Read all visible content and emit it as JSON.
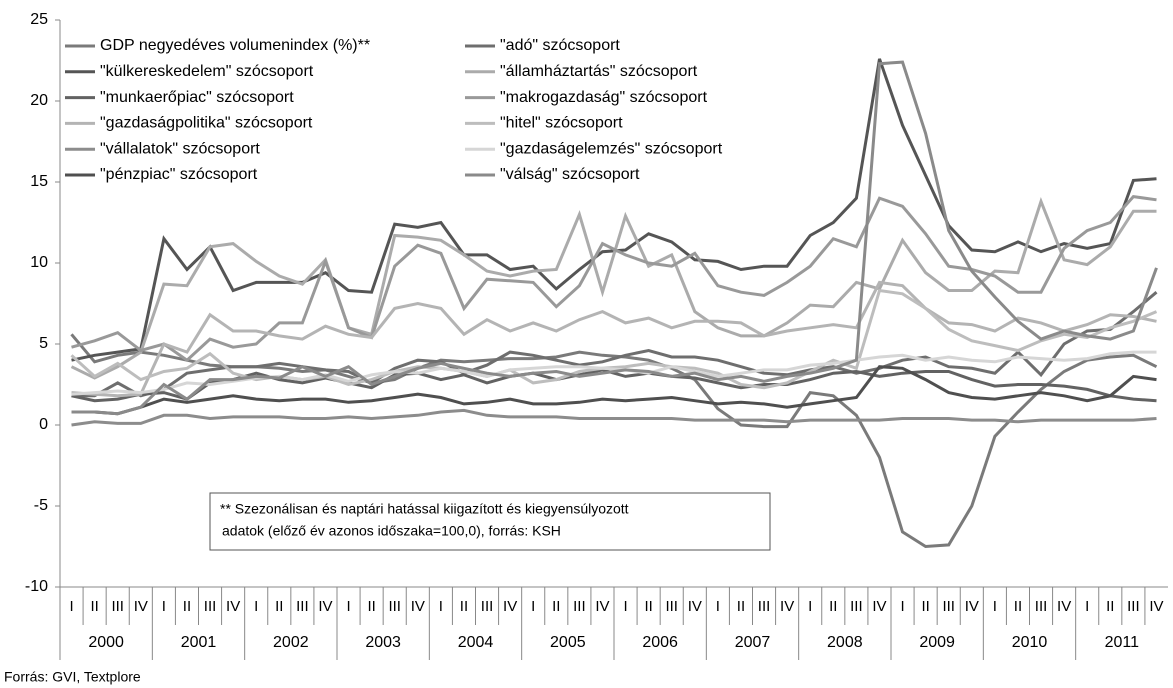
{
  "chart_data": {
    "type": "line",
    "categories": [
      "I",
      "II",
      "III",
      "IV",
      "I",
      "II",
      "III",
      "IV",
      "I",
      "II",
      "III",
      "IV",
      "I",
      "II",
      "III",
      "IV",
      "I",
      "II",
      "III",
      "IV",
      "I",
      "II",
      "III",
      "IV",
      "I",
      "II",
      "III",
      "IV",
      "I",
      "II",
      "III",
      "IV",
      "I",
      "II",
      "III",
      "IV",
      "I",
      "II",
      "III",
      "IV",
      "I",
      "II",
      "III",
      "IV",
      "I",
      "II",
      "III",
      "IV"
    ],
    "years": [
      "2000",
      "2001",
      "2002",
      "2003",
      "2004",
      "2005",
      "2006",
      "2007",
      "2008",
      "2009",
      "2010",
      "2011"
    ],
    "ylim": [
      -10,
      25
    ],
    "yticks": [
      -10,
      -5,
      0,
      5,
      10,
      15,
      20,
      25
    ],
    "note": [
      "** Szezonálisan és naptári hatással kiigazított és kiegyensúlyozott",
      "adatok (előző év azonos időszaka=100,0), forrás: KSH"
    ],
    "source": "Forrás: GVI, Textplore",
    "series": [
      {
        "name": "GDP negyedéves volumenindex (%)**",
        "color": "#7a7a7a",
        "values": [
          5.6,
          3.9,
          4.3,
          4.5,
          4.3,
          4.0,
          3.7,
          3.6,
          3.6,
          3.5,
          3.3,
          3.4,
          3.0,
          2.6,
          2.8,
          3.5,
          4.0,
          3.9,
          4.0,
          4.1,
          4.1,
          4.2,
          4.5,
          4.3,
          4.2,
          4.0,
          3.5,
          2.8,
          1.0,
          0.0,
          -0.1,
          -0.1,
          2.0,
          1.8,
          0.6,
          -2.0,
          -6.6,
          -7.5,
          -7.4,
          -5.0,
          -0.7,
          0.8,
          2.2,
          3.3,
          4.0,
          4.2,
          4.3,
          3.6
        ]
      },
      {
        "name": "\"adó\" szócsoport",
        "color": "#6e6e6e",
        "values": [
          1.8,
          1.8,
          2.6,
          1.8,
          2.2,
          3.2,
          3.4,
          3.6,
          3.6,
          3.8,
          3.6,
          3.4,
          3.3,
          2.6,
          3.5,
          4.0,
          3.9,
          3.2,
          3.7,
          4.5,
          4.3,
          4.0,
          3.7,
          3.9,
          4.3,
          4.6,
          4.2,
          4.2,
          4.0,
          3.6,
          3.2,
          3.1,
          3.4,
          3.6,
          3.2,
          3.5,
          4.0,
          4.2,
          3.6,
          3.5,
          3.2,
          4.5,
          3.1,
          5.0,
          5.8,
          5.9,
          7.0,
          8.2
        ]
      },
      {
        "name": "\"külkereskedelem\" szócsoport",
        "color": "#555555",
        "values": [
          4.0,
          4.3,
          4.5,
          4.7,
          11.5,
          9.6,
          11.0,
          8.3,
          8.8,
          8.8,
          8.8,
          9.4,
          8.3,
          8.2,
          12.4,
          12.2,
          12.5,
          10.5,
          10.5,
          9.6,
          9.8,
          8.4,
          9.6,
          10.7,
          10.8,
          11.8,
          11.3,
          10.2,
          10.1,
          9.6,
          9.8,
          9.8,
          11.7,
          12.5,
          14.0,
          22.6,
          18.5,
          15.4,
          12.3,
          10.8,
          10.7,
          11.3,
          10.7,
          11.2,
          10.9,
          11.2,
          15.1,
          15.2
        ]
      },
      {
        "name": "\"államháztartás\" szócsoport",
        "color": "#ababab",
        "values": [
          3.6,
          2.9,
          3.6,
          4.5,
          8.7,
          8.6,
          11.0,
          11.2,
          10.1,
          9.2,
          8.7,
          10.2,
          6.0,
          5.6,
          11.7,
          11.6,
          11.4,
          10.5,
          9.5,
          9.2,
          9.5,
          9.6,
          13.0,
          8.2,
          12.9,
          9.8,
          10.5,
          7.0,
          6.0,
          5.5,
          5.5,
          6.3,
          7.4,
          7.3,
          8.8,
          8.4,
          11.4,
          9.4,
          8.3,
          8.3,
          9.5,
          9.4,
          13.8,
          10.2,
          9.9,
          11.0,
          13.2,
          13.2
        ]
      },
      {
        "name": "\"munkaerőpiac\" szócsoport",
        "color": "#626262",
        "values": [
          1.8,
          1.5,
          1.6,
          1.9,
          2.0,
          1.6,
          2.6,
          2.8,
          3.2,
          2.8,
          2.6,
          2.9,
          2.6,
          2.3,
          3.1,
          3.2,
          2.8,
          3.1,
          2.6,
          3.0,
          3.2,
          2.8,
          3.1,
          3.4,
          3.0,
          3.2,
          3.0,
          2.9,
          2.6,
          2.3,
          2.5,
          2.5,
          2.8,
          3.2,
          3.3,
          3.0,
          3.2,
          3.3,
          3.3,
          2.8,
          2.4,
          2.5,
          2.5,
          2.4,
          2.2,
          1.8,
          1.6,
          1.5
        ]
      },
      {
        "name": "\"makrogazdaság\" szócsoport",
        "color": "#999999",
        "values": [
          4.8,
          5.2,
          5.7,
          4.6,
          5.0,
          4.0,
          5.3,
          4.8,
          5.0,
          6.3,
          6.3,
          10.1,
          6.0,
          5.4,
          9.8,
          11.1,
          10.6,
          7.2,
          9.0,
          8.9,
          8.8,
          7.3,
          8.6,
          11.2,
          10.5,
          10.0,
          9.8,
          10.6,
          8.6,
          8.2,
          8.0,
          8.8,
          9.8,
          11.5,
          11.0,
          14.0,
          13.5,
          11.8,
          9.8,
          9.6,
          9.2,
          8.2,
          8.2,
          10.9,
          12.0,
          12.5,
          14.1,
          13.9
        ]
      },
      {
        "name": "\"gazdaságpolitika\" szócsoport",
        "color": "#b4b4b4",
        "values": [
          2.0,
          1.9,
          1.8,
          1.9,
          5.0,
          4.5,
          6.8,
          5.8,
          5.8,
          5.5,
          5.3,
          6.1,
          5.6,
          5.4,
          7.2,
          7.5,
          7.2,
          5.6,
          6.5,
          5.8,
          6.3,
          5.8,
          6.5,
          7.0,
          6.3,
          6.6,
          6.0,
          6.4,
          6.4,
          6.3,
          5.5,
          5.8,
          6.0,
          6.2,
          6.0,
          8.8,
          8.6,
          7.2,
          6.3,
          6.2,
          5.8,
          6.6,
          6.3,
          5.8,
          6.2,
          6.8,
          6.7,
          6.4
        ]
      },
      {
        "name": "\"hitel\" szócsoport",
        "color": "#bdbdbd",
        "values": [
          4.3,
          3.0,
          3.8,
          2.8,
          3.3,
          3.5,
          4.4,
          3.2,
          2.8,
          3.0,
          2.8,
          3.0,
          2.5,
          2.8,
          3.3,
          3.6,
          3.5,
          3.3,
          3.0,
          3.4,
          2.6,
          2.8,
          3.3,
          3.5,
          3.6,
          3.8,
          3.6,
          3.5,
          3.2,
          2.5,
          2.3,
          2.6,
          3.3,
          4.0,
          3.5,
          8.3,
          8.1,
          7.2,
          5.9,
          5.2,
          4.9,
          4.6,
          5.2,
          5.6,
          5.4,
          6.0,
          6.4,
          7.0
        ]
      },
      {
        "name": "\"vállalatok\" szócsoport",
        "color": "#8c8c8c",
        "values": [
          0.0,
          0.2,
          0.1,
          0.1,
          0.6,
          0.6,
          0.4,
          0.5,
          0.5,
          0.5,
          0.4,
          0.4,
          0.5,
          0.4,
          0.5,
          0.6,
          0.8,
          0.9,
          0.6,
          0.5,
          0.5,
          0.5,
          0.4,
          0.4,
          0.4,
          0.4,
          0.4,
          0.3,
          0.3,
          0.3,
          0.3,
          0.2,
          0.3,
          0.3,
          0.3,
          0.3,
          0.4,
          0.4,
          0.4,
          0.3,
          0.3,
          0.2,
          0.3,
          0.3,
          0.3,
          0.3,
          0.3,
          0.4
        ]
      },
      {
        "name": "\"gazdaságelemzés\" szócsoport",
        "color": "#d6d6d6",
        "values": [
          1.9,
          2.0,
          2.1,
          2.0,
          2.2,
          2.6,
          2.5,
          2.7,
          2.9,
          3.0,
          2.8,
          3.1,
          2.7,
          3.1,
          3.3,
          3.2,
          3.5,
          3.3,
          3.0,
          3.4,
          3.5,
          3.6,
          3.6,
          3.5,
          3.4,
          3.2,
          3.6,
          3.3,
          3.0,
          3.2,
          3.4,
          3.4,
          3.7,
          3.8,
          4.0,
          4.2,
          4.3,
          4.0,
          4.2,
          4.0,
          3.9,
          4.2,
          4.1,
          4.0,
          4.1,
          4.4,
          4.5,
          4.5
        ]
      },
      {
        "name": "\"pénzpiac\" szócsoport",
        "color": "#4f4f4f",
        "values": [
          0.8,
          0.8,
          0.7,
          1.1,
          1.6,
          1.4,
          1.6,
          1.8,
          1.6,
          1.5,
          1.6,
          1.6,
          1.4,
          1.5,
          1.7,
          1.9,
          1.7,
          1.3,
          1.4,
          1.6,
          1.3,
          1.3,
          1.4,
          1.6,
          1.5,
          1.6,
          1.7,
          1.5,
          1.3,
          1.4,
          1.3,
          1.1,
          1.3,
          1.5,
          1.7,
          3.6,
          3.5,
          2.8,
          2.0,
          1.7,
          1.6,
          1.8,
          2.0,
          1.8,
          1.5,
          1.8,
          3.0,
          2.8
        ]
      },
      {
        "name": "\"válság\" szócsoport",
        "color": "#8a8a8a",
        "values": [
          0.8,
          0.8,
          0.7,
          1.1,
          2.5,
          1.6,
          2.8,
          2.8,
          3.0,
          2.9,
          3.6,
          3.0,
          3.6,
          2.5,
          3.0,
          3.5,
          3.8,
          3.5,
          3.2,
          3.0,
          3.2,
          3.3,
          3.0,
          3.2,
          3.4,
          3.3,
          3.0,
          3.2,
          2.8,
          3.0,
          2.7,
          3.0,
          3.2,
          3.5,
          4.0,
          22.3,
          22.4,
          18.0,
          12.0,
          9.5,
          7.9,
          6.4,
          5.3,
          5.8,
          5.5,
          5.3,
          5.8,
          9.7
        ]
      }
    ]
  }
}
